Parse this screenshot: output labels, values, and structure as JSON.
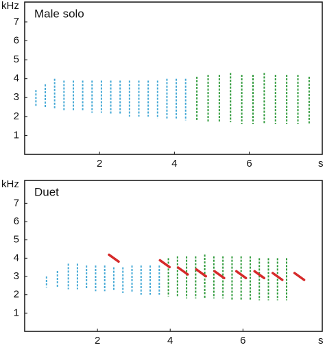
{
  "chart_data": [
    {
      "type": "spectrogram",
      "title": "Male solo",
      "ylabel": "kHz",
      "xlabel": "s",
      "xlim": [
        0,
        7.95
      ],
      "ylim": [
        0,
        8.05
      ],
      "xticks": [
        2,
        4,
        6
      ],
      "yticks": [
        1,
        2,
        3,
        4,
        5,
        6,
        7
      ],
      "series": [
        {
          "color": "#45a9d6",
          "style": "stroke",
          "x": [
            0.3,
            0.55,
            0.8,
            1.05,
            1.3,
            1.55,
            1.8,
            2.05,
            2.3,
            2.55,
            2.8,
            3.05,
            3.3,
            3.55,
            3.8,
            4.05,
            4.3
          ],
          "values": [
            3.4,
            3.7,
            4.0,
            3.9,
            3.9,
            3.9,
            3.9,
            3.9,
            3.9,
            3.9,
            3.9,
            3.9,
            3.9,
            3.9,
            4.0,
            4.0,
            4.0
          ],
          "low": [
            2.5,
            2.5,
            2.4,
            2.3,
            2.3,
            2.3,
            2.2,
            2.2,
            2.1,
            2.1,
            2.0,
            2.0,
            2.0,
            1.9,
            1.9,
            1.9,
            1.8
          ]
        },
        {
          "color": "#2f9a3a",
          "style": "stroke",
          "x": [
            4.6,
            4.9,
            5.2,
            5.5,
            5.8,
            6.1,
            6.4,
            6.7,
            7.0,
            7.3,
            7.6
          ],
          "values": [
            4.1,
            4.2,
            4.2,
            4.3,
            4.2,
            4.2,
            4.3,
            4.2,
            4.2,
            4.2,
            4.1
          ],
          "low": [
            1.8,
            1.7,
            1.7,
            1.7,
            1.6,
            1.6,
            1.6,
            1.6,
            1.6,
            1.6,
            1.6
          ]
        }
      ]
    },
    {
      "type": "spectrogram",
      "title": "Duet",
      "ylabel": "kHz",
      "xlabel": "s",
      "xlim": [
        0,
        8.18
      ],
      "ylim": [
        0,
        8.25
      ],
      "xticks": [
        2,
        4,
        6
      ],
      "yticks": [
        1,
        2,
        3,
        4,
        5,
        6,
        7
      ],
      "series": [
        {
          "color": "#45a9d6",
          "style": "stroke",
          "x": [
            0.6,
            0.9,
            1.2,
            1.45,
            1.7,
            1.95,
            2.2,
            2.45,
            2.7,
            2.95,
            3.2,
            3.45,
            3.7
          ],
          "values": [
            3.0,
            3.3,
            3.7,
            3.7,
            3.6,
            3.6,
            3.6,
            3.5,
            3.5,
            3.6,
            3.6,
            3.6,
            3.6
          ],
          "low": [
            2.4,
            2.4,
            2.3,
            2.3,
            2.3,
            2.2,
            2.2,
            2.2,
            2.1,
            2.1,
            2.0,
            2.0,
            2.0
          ]
        },
        {
          "color": "#2f9a3a",
          "style": "stroke",
          "x": [
            3.95,
            4.2,
            4.45,
            4.7,
            4.95,
            5.2,
            5.45,
            5.7,
            5.95,
            6.2,
            6.45,
            6.7,
            6.95,
            7.2
          ],
          "values": [
            4.0,
            4.1,
            4.1,
            4.1,
            4.2,
            4.1,
            4.1,
            4.1,
            4.1,
            4.1,
            4.0,
            4.0,
            4.0,
            4.0
          ],
          "low": [
            1.9,
            1.9,
            1.8,
            1.8,
            1.8,
            1.8,
            1.8,
            1.7,
            1.7,
            1.7,
            1.7,
            1.7,
            1.7,
            1.7
          ]
        },
        {
          "color": "#d62a2a",
          "style": "slash",
          "x": [
            2.45,
            3.85,
            4.35,
            4.85,
            5.35,
            5.95,
            6.45,
            6.95,
            7.55
          ],
          "values": [
            4.0,
            3.7,
            3.3,
            3.2,
            3.1,
            3.1,
            3.1,
            3.0,
            3.0
          ]
        }
      ]
    }
  ]
}
